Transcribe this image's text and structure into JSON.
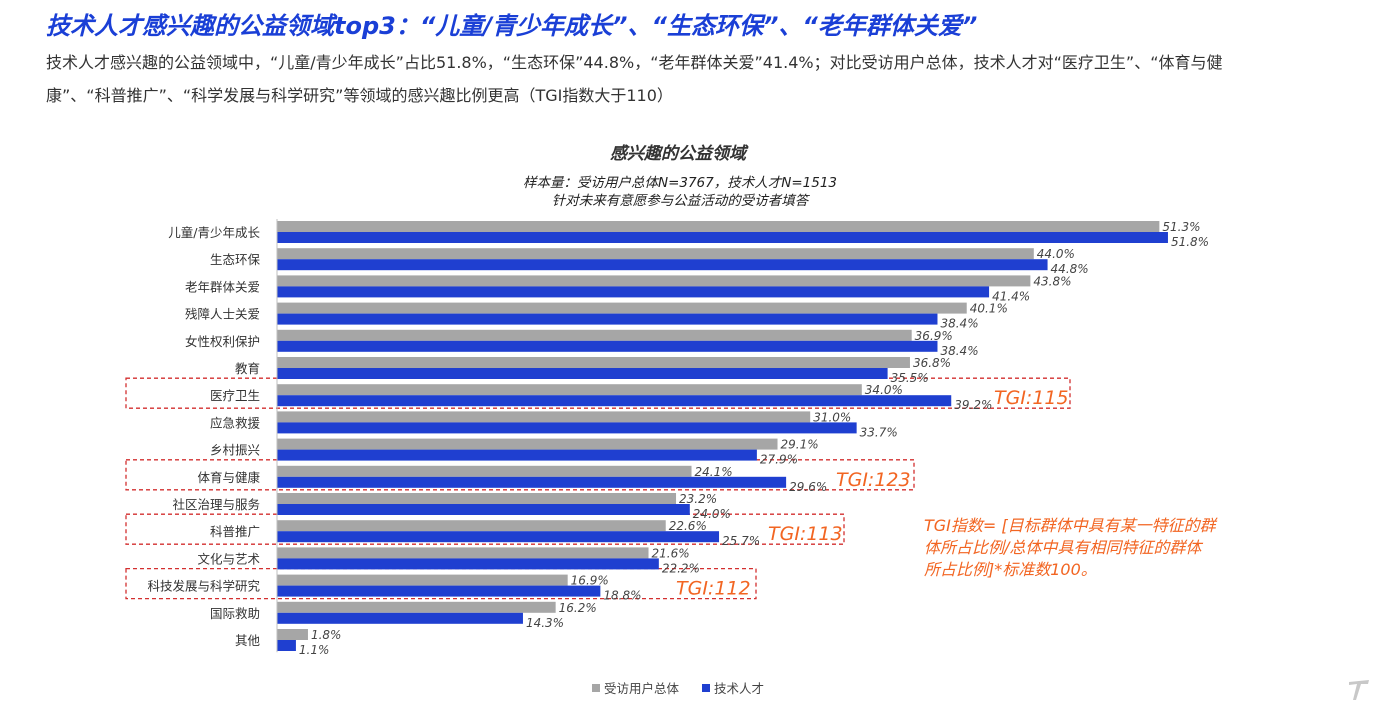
{
  "header": {
    "headline": "技术人才感兴趣的公益领域top3：“儿童/青少年成长”、“生态环保”、“老年群体关爱”",
    "summary": "技术人才感兴趣的公益领域中，“儿童/青少年成长”占比51.8%，“生态环保”44.8%，“老年群体关爱”41.4%；对比受访用户总体，技术人才对“医疗卫生”、“体育与健康”、“科普推广”、“科学发展与科学研究”等领域的感兴趣比例更高（TGI指数大于110）"
  },
  "chart_data": {
    "type": "bar",
    "orientation": "horizontal",
    "title": "感兴趣的公益领域",
    "subtitle_lines": [
      "样本量：受访用户总体N=3767，技术人才N=1513",
      "针对未来有意愿参与公益活动的受访者填答"
    ],
    "categories": [
      "儿童/青少年成长",
      "生态环保",
      "老年群体关爱",
      "残障人士关爱",
      "女性权利保护",
      "教育",
      "医疗卫生",
      "应急救援",
      "乡村振兴",
      "体育与健康",
      "社区治理与服务",
      "科普推广",
      "文化与艺术",
      "科技发展与科学研究",
      "国际救助",
      "其他"
    ],
    "series": [
      {
        "name": "受访用户总体",
        "color": "#a6a6a6",
        "values": [
          51.3,
          44.0,
          43.8,
          40.1,
          36.9,
          36.8,
          34.0,
          31.0,
          29.1,
          24.1,
          23.2,
          22.6,
          21.6,
          16.9,
          16.2,
          1.8
        ]
      },
      {
        "name": "技术人才",
        "color": "#1f3fd0",
        "values": [
          51.8,
          44.8,
          41.4,
          38.4,
          38.4,
          35.5,
          39.2,
          33.7,
          27.9,
          29.6,
          24.0,
          25.7,
          22.2,
          18.8,
          14.3,
          1.1
        ]
      }
    ],
    "value_suffix": "%",
    "xlim": [
      0,
      60
    ],
    "grid": false,
    "legend_position": "bottom",
    "highlights": [
      {
        "category": "医疗卫生",
        "label": "TGI:115"
      },
      {
        "category": "体育与健康",
        "label": "TGI:123"
      },
      {
        "category": "科普推广",
        "label": "TGI:113"
      },
      {
        "category": "科技发展与科学研究",
        "label": "TGI:112"
      }
    ],
    "note_lines": [
      "TGI指数= [目标群体中具有某一特征的群",
      "体所占比例/总体中具有相同特征的群体",
      "所占比例]*标准数100。"
    ],
    "colors": {
      "highlight": "#f26522",
      "box": "#d32f2f",
      "title": "#333333"
    }
  },
  "icons": {
    "corner": "t-logo-icon"
  }
}
